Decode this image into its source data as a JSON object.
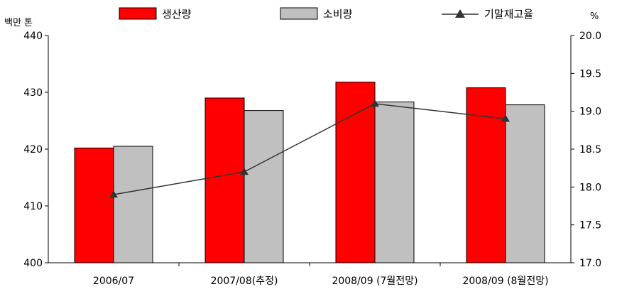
{
  "chart_data": {
    "type": "bar",
    "categories": [
      "2006/07",
      "2007/08(추정)",
      "2008/09 (7월전망)",
      "2008/09 (8월전망)"
    ],
    "series": [
      {
        "name": "생산량",
        "kind": "bar",
        "axis": "left",
        "color": "#ff0000",
        "values": [
          420.2,
          429.0,
          431.8,
          430.8
        ]
      },
      {
        "name": "소비량",
        "kind": "bar",
        "axis": "left",
        "color": "#c0c0c0",
        "values": [
          420.5,
          426.8,
          428.3,
          427.8
        ]
      },
      {
        "name": "기말재고율",
        "kind": "line",
        "axis": "right",
        "color": "#333333",
        "marker": "triangle",
        "values": [
          17.9,
          18.2,
          19.1,
          18.9
        ]
      }
    ],
    "ylabel_left": "백만 톤",
    "ylabel_right": "%",
    "ylim_left": [
      400,
      440
    ],
    "ylim_right": [
      17.0,
      20.0
    ],
    "yticks_left": [
      "400",
      "410",
      "420",
      "430",
      "440"
    ],
    "yticks_right": [
      "17.0",
      "17.5",
      "18.0",
      "18.5",
      "19.0",
      "19.5",
      "20.0"
    ],
    "legend_position": "top",
    "grid": false
  }
}
